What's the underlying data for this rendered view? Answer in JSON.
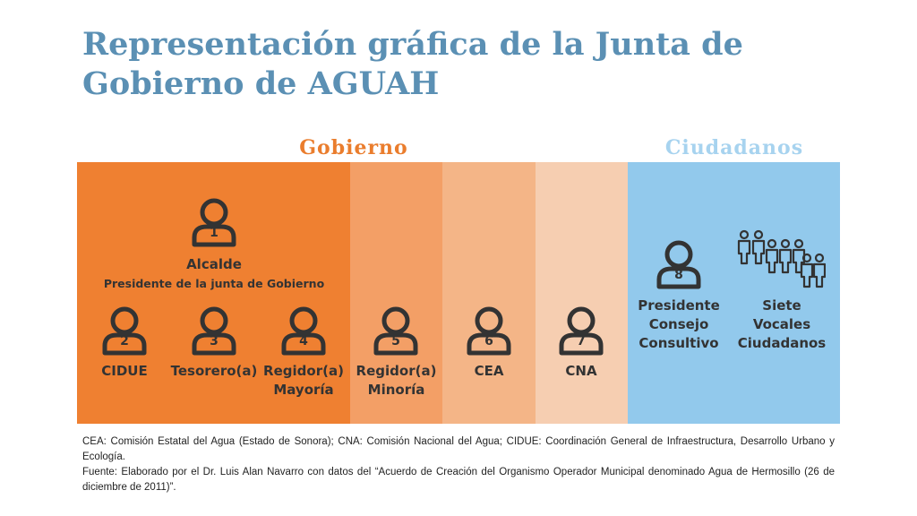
{
  "title": "Representación gráfica de la Junta de Gobierno de AGUAH",
  "sections": {
    "gobierno": "Gobierno",
    "ciudadanos": "Ciudadanos"
  },
  "members": {
    "alcalde": {
      "number": "1",
      "label": "Alcalde",
      "sublabel": "Presidente de la junta de Gobierno"
    },
    "cidue": {
      "number": "2",
      "label": "CIDUE"
    },
    "tesorero": {
      "number": "3",
      "label": "Tesorero(a)"
    },
    "regidor_mayoria": {
      "number": "4",
      "line1": "Regidor(a)",
      "line2": "Mayoría"
    },
    "regidor_minoria": {
      "number": "5",
      "line1": "Regidor(a)",
      "line2": "Minoría"
    },
    "cea": {
      "number": "6",
      "label": "CEA"
    },
    "cna": {
      "number": "7",
      "label": "CNA"
    },
    "presidente_consejo": {
      "number": "8",
      "line1": "Presidente",
      "line2": "Consejo",
      "line3": "Consultivo"
    },
    "vocales": {
      "line1": "Siete",
      "line2": "Vocales",
      "line3": "Ciudadanos"
    }
  },
  "footnote": {
    "abbreviations": "CEA: Comisión Estatal del Agua (Estado de Sonora); CNA: Comisión Nacional del Agua; CIDUE: Coordinación General de Infraestructura, Desarrollo Urbano y Ecología.",
    "source": "Fuente: Elaborado por el Dr. Luis Alan Navarro con datos del “Acuerdo de Creación del Organismo Operador Municipal denominado Agua de Hermosillo (26 de diciembre de 2011)”."
  },
  "colors": {
    "title": "#5b90b4",
    "gobierno_label": "#ea7d2d",
    "ciudadanos_label": "#a7d3ef",
    "panel_gobierno": "#ef8031",
    "panel_regidor_minoria": "#f39f66",
    "panel_cea": "#f4b587",
    "panel_cna": "#f6ceb1",
    "panel_ciudadanos": "#92c9ec",
    "icon_stroke": "#333333"
  },
  "icons": {
    "member": "person-outline-icon",
    "citizens": "people-group-icon"
  }
}
